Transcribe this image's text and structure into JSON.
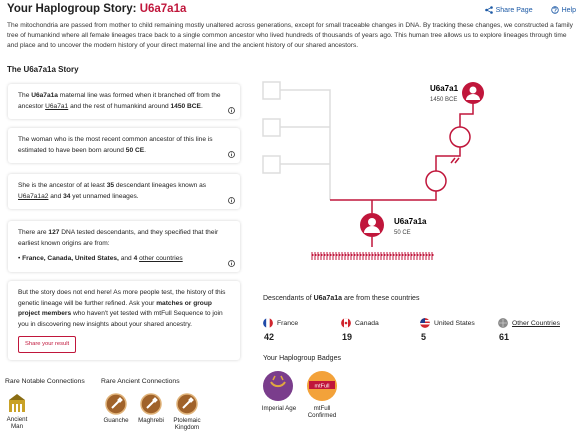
{
  "header": {
    "title": "Your Haplogroup Story:",
    "haplogroup": "U6a7a1a",
    "share": "Share Page",
    "help": "Help"
  },
  "intro": "The mitochondria are passed from mother to child remaining mostly unaltered across generations, except for small traceable changes in DNA. By tracking these changes, we constructed a family tree of humankind where all female lineages trace back to a single common ancestor who lived hundreds of thousands of years ago. This human tree allows us to explore lineages through time and place and to uncover the modern history of your direct maternal line and the ancient history of our shared ancestors.",
  "story": {
    "title": "The U6a7a1a Story",
    "cards": [
      {
        "segments": [
          "The ",
          "U6a7a1a",
          " maternal line was formed when it branched off from the ancestor ",
          "U6a7a1",
          " and the rest of humankind around ",
          "1450 BCE",
          "."
        ]
      },
      {
        "segments": [
          "The woman who is the most recent common ancestor of this line is estimated to have been born around ",
          "50 CE",
          "."
        ]
      },
      {
        "segments": [
          "She is the ancestor of at least ",
          "35",
          " descendant lineages known as ",
          "U6a7a1a2",
          " and ",
          "34",
          " yet unnamed lineages."
        ]
      },
      {
        "segments": [
          "There are ",
          "127",
          " DNA tested descendants, and they specified that their earliest known origins are from:"
        ],
        "bullet": [
          "France, Canada, United States,",
          " and ",
          "4",
          "other countries"
        ]
      },
      {
        "segments": [
          "But the story does not end here! As more people test, the history of this genetic lineage will be further refined. Ask your ",
          "matches or group project members",
          " who haven't yet tested with mtFull Sequence to join you in discovering new insights about your shared ancestry."
        ],
        "button": "Share your result"
      }
    ]
  },
  "tree": {
    "nodes": [
      {
        "label": "U6a7a1",
        "date": "1450 BCE"
      },
      {
        "label": "U6a7a1a",
        "date": "50 CE"
      }
    ]
  },
  "descendants": {
    "heading": [
      "Descendants of ",
      "U6a7a1a",
      " are from these countries"
    ],
    "countries": [
      {
        "name": "France",
        "count": 42
      },
      {
        "name": "Canada",
        "count": 19
      },
      {
        "name": "United States",
        "count": 5
      },
      {
        "name": "Other Countries",
        "count": 61
      }
    ]
  },
  "badges": {
    "title": "Your Haplogroup Badges",
    "items": [
      "Imperial Age",
      "mtFull Confirmed"
    ],
    "mtfull_icon": "mtFull"
  },
  "notable": {
    "title": "Rare Notable Connections",
    "items": [
      "Ancient Man"
    ]
  },
  "ancient": {
    "title": "Rare Ancient Connections",
    "items": [
      "Guanche",
      "Maghrebi",
      "Ptolemaic Kingdom"
    ]
  }
}
